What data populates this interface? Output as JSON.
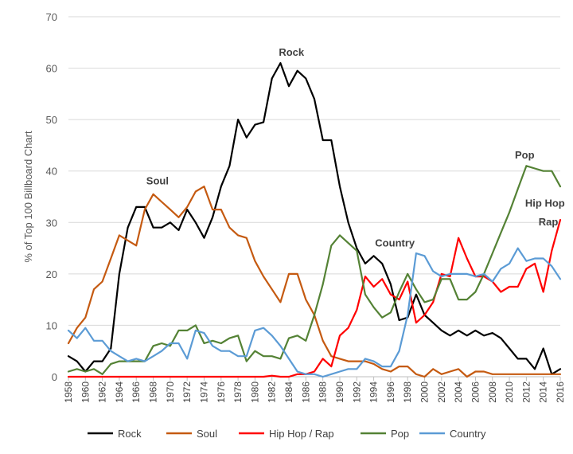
{
  "chart_data": {
    "type": "line",
    "title": "",
    "xlabel": "",
    "ylabel": "% of Top 100 Billboard Chart",
    "ylim": [
      0,
      70
    ],
    "xlim": [
      1958,
      2016
    ],
    "y_ticks": [
      0,
      10,
      20,
      30,
      40,
      50,
      60,
      70
    ],
    "x_tick_labels": [
      "1958",
      "1960",
      "1962",
      "1964",
      "1966",
      "1968",
      "1970",
      "1972",
      "1974",
      "1976",
      "1978",
      "1980",
      "1982",
      "1984",
      "1986",
      "1988",
      "1990",
      "1992",
      "1994",
      "1996",
      "1998",
      "2000",
      "2002",
      "2004",
      "2006",
      "2008",
      "2010",
      "2012",
      "2014",
      "2016"
    ],
    "legend_position": "bottom",
    "x": [
      1958,
      1959,
      1960,
      1961,
      1962,
      1963,
      1964,
      1965,
      1966,
      1967,
      1968,
      1969,
      1970,
      1971,
      1972,
      1973,
      1974,
      1975,
      1976,
      1977,
      1978,
      1979,
      1980,
      1981,
      1982,
      1983,
      1984,
      1985,
      1986,
      1987,
      1988,
      1989,
      1990,
      1991,
      1992,
      1993,
      1994,
      1995,
      1996,
      1997,
      1998,
      1999,
      2000,
      2001,
      2002,
      2003,
      2004,
      2005,
      2006,
      2007,
      2008,
      2009,
      2010,
      2011,
      2012,
      2013,
      2014,
      2015,
      2016
    ],
    "series": [
      {
        "name": "Rock",
        "color": "#000000",
        "values": [
          4,
          3,
          1,
          3,
          3,
          5.5,
          20,
          29,
          33,
          33,
          29,
          29,
          30,
          28.5,
          32.5,
          30,
          27,
          31,
          37,
          41,
          50,
          46.5,
          49,
          49.5,
          58,
          61,
          56.5,
          59.5,
          58,
          54,
          46,
          46,
          37,
          30,
          25,
          22,
          23.5,
          22,
          18,
          11,
          11.5,
          16,
          12,
          10.5,
          9,
          8,
          9,
          8,
          9,
          8,
          8.5,
          7.5,
          5.5,
          3.5,
          3.5,
          1.5,
          5.5,
          0.5,
          1.5
        ]
      },
      {
        "name": "Soul",
        "color": "#C55A11",
        "values": [
          6.5,
          9.5,
          11.5,
          17,
          18.5,
          23,
          27.5,
          26.5,
          25.5,
          32.5,
          35.5,
          34,
          32.5,
          31,
          33,
          36,
          37,
          32.5,
          32.5,
          29,
          27.5,
          27,
          22.5,
          19.5,
          17,
          14.5,
          20,
          20,
          15,
          12,
          7,
          4,
          3.5,
          3,
          3,
          3,
          2.5,
          1.5,
          1,
          2,
          2,
          0.5,
          0,
          1.5,
          0.5,
          1,
          1.5,
          0,
          1,
          1,
          0.5,
          0.5,
          0.5,
          0.5,
          0.5,
          0.5,
          0.5,
          0.5,
          0.5
        ]
      },
      {
        "name": "Hip Hop / Rap",
        "color": "#FF0000",
        "values": [
          0,
          0,
          0,
          0,
          0,
          0,
          0,
          0,
          0,
          0,
          0,
          0,
          0,
          0,
          0,
          0,
          0,
          0,
          0,
          0,
          0,
          0,
          0,
          0,
          0.2,
          0,
          0,
          0.5,
          0.5,
          1,
          3.5,
          2,
          8,
          9.5,
          13,
          19.5,
          17.5,
          19,
          16,
          15,
          18.5,
          10.5,
          12,
          14.5,
          20,
          19.5,
          27,
          23,
          19.5,
          19.5,
          18.5,
          16.5,
          17.5,
          17.5,
          21,
          22,
          16.5,
          24.5,
          30.5
        ]
      },
      {
        "name": "Pop",
        "color": "#548235",
        "values": [
          1,
          1.5,
          1,
          1.5,
          0.5,
          2.5,
          3,
          3,
          3,
          3,
          6,
          6.5,
          6,
          9,
          9,
          10,
          6.5,
          7,
          6.5,
          7.5,
          8,
          3,
          5,
          4,
          4,
          3.5,
          7.5,
          8,
          7,
          12,
          18,
          25.5,
          27.5,
          26,
          24.5,
          16,
          13.5,
          11.5,
          12.5,
          16.5,
          20,
          17,
          14.5,
          15,
          19,
          19,
          15,
          15,
          16.5,
          20,
          24,
          28,
          32,
          36.5,
          41,
          40.5,
          40,
          40,
          37
        ]
      },
      {
        "name": "Country",
        "color": "#5B9BD5",
        "values": [
          9,
          7.5,
          9.5,
          7,
          7,
          5,
          4,
          3,
          3.5,
          3,
          4,
          5,
          6.5,
          6.5,
          3.5,
          9,
          8.5,
          6,
          5,
          5,
          4,
          4,
          9,
          9.5,
          8,
          6,
          3.5,
          1,
          0.5,
          0.5,
          0,
          0.5,
          1,
          1.5,
          1.5,
          3.5,
          3,
          2,
          2,
          5,
          12,
          24,
          23.5,
          20.5,
          19.5,
          20,
          20,
          20,
          19.5,
          20,
          18.5,
          21,
          22,
          25,
          22.5,
          23,
          23,
          21.5,
          19
        ]
      }
    ],
    "annotations": [
      {
        "label": "Rock",
        "x": 1984.3,
        "y": 62.4
      },
      {
        "label": "Soul",
        "x": 1968.5,
        "y": 37.4
      },
      {
        "label": "Country",
        "x": 1996.5,
        "y": 25.3
      },
      {
        "label": "Pop",
        "x": 2011.8,
        "y": 42.4
      },
      {
        "label": "Hip Hop",
        "x": 2014.2,
        "y": 33.1
      },
      {
        "label": "Rap",
        "x": 2014.6,
        "y": 29.4
      }
    ]
  }
}
